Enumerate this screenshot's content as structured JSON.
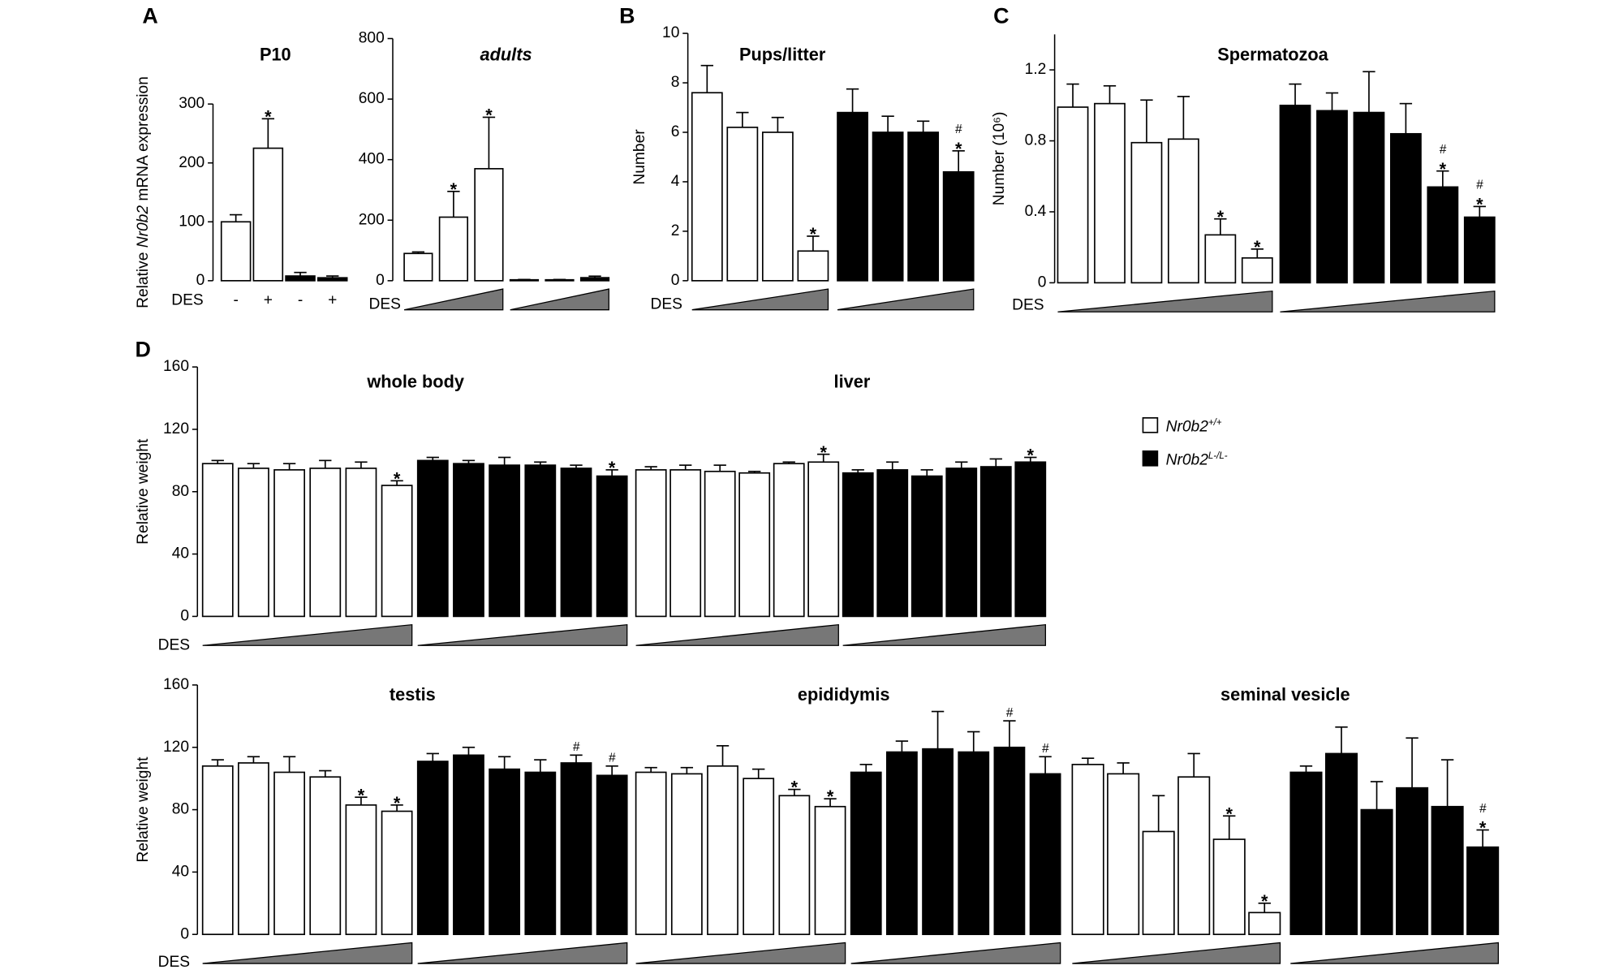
{
  "chart_data": [
    {
      "type": "bar",
      "panel": "A",
      "title": "P10",
      "ylabel": [
        "Relative ",
        "Nr0b2",
        " mRNA expression"
      ],
      "ylim": [
        0,
        300
      ],
      "yticks": [
        0,
        100,
        200,
        300
      ],
      "dose_label": "DES",
      "series": [
        {
          "color": "#ffffff",
          "categories": [
            "-",
            "+"
          ],
          "values": [
            100,
            225
          ],
          "errors": [
            12,
            50
          ],
          "annotations": [
            null,
            [
              "*"
            ]
          ]
        },
        {
          "color": "#000000",
          "categories": [
            "-",
            "+"
          ],
          "values": [
            8,
            5
          ],
          "errors": [
            6,
            3
          ],
          "annotations": [
            null,
            null
          ]
        }
      ]
    },
    {
      "type": "bar",
      "title": "adults",
      "title_style": "italic",
      "ylim": [
        0,
        800
      ],
      "yticks": [
        0,
        200,
        400,
        600,
        800
      ],
      "dose_label": "DES",
      "series": [
        {
          "color": "#ffffff",
          "values": [
            90,
            210,
            370
          ],
          "errors": [
            5,
            85,
            170
          ],
          "annotations": [
            null,
            [
              "*"
            ],
            [
              "*"
            ]
          ]
        },
        {
          "color": "#000000",
          "values": [
            3,
            3,
            10
          ],
          "errors": [
            1,
            1,
            5
          ],
          "annotations": [
            null,
            null,
            null
          ]
        }
      ]
    },
    {
      "type": "bar",
      "panel": "B",
      "title": "Pups/litter",
      "ylabel": "Number",
      "ylim": [
        0,
        10
      ],
      "yticks": [
        0,
        2,
        4,
        6,
        8,
        10
      ],
      "dose_label": "DES",
      "series": [
        {
          "color": "#ffffff",
          "values": [
            7.6,
            6.2,
            6.0,
            1.2
          ],
          "errors": [
            1.1,
            0.6,
            0.6,
            0.6
          ],
          "annotations": [
            null,
            null,
            null,
            [
              "*"
            ]
          ]
        },
        {
          "color": "#000000",
          "values": [
            6.8,
            6.0,
            6.0,
            4.4
          ],
          "errors": [
            0.95,
            0.65,
            0.45,
            0.85
          ],
          "annotations": [
            null,
            null,
            null,
            [
              "*",
              "#"
            ]
          ]
        }
      ]
    },
    {
      "type": "bar",
      "panel": "C",
      "title": "Spermatozoa",
      "ylabel": "Number (10⁶)",
      "ylim": [
        0,
        1.4
      ],
      "yticks": [
        0,
        0.4,
        0.8,
        1.2
      ],
      "dose_label": "DES",
      "series": [
        {
          "color": "#ffffff",
          "values": [
            0.99,
            1.01,
            0.79,
            0.81,
            0.27,
            0.14
          ],
          "errors": [
            0.13,
            0.1,
            0.24,
            0.24,
            0.09,
            0.05
          ],
          "annotations": [
            null,
            null,
            null,
            null,
            [
              "*"
            ],
            [
              "*"
            ]
          ]
        },
        {
          "color": "#000000",
          "values": [
            1.0,
            0.97,
            0.96,
            0.84,
            0.54,
            0.37
          ],
          "errors": [
            0.12,
            0.1,
            0.23,
            0.17,
            0.09,
            0.06
          ],
          "annotations": [
            null,
            null,
            null,
            null,
            [
              "*",
              "#"
            ],
            [
              "*",
              "#"
            ]
          ]
        }
      ]
    },
    {
      "type": "bar",
      "panel": "D",
      "title": "whole body",
      "ylabel": "Relative weight",
      "ylim": [
        0,
        160
      ],
      "yticks": [
        0,
        40,
        80,
        120,
        160
      ],
      "dose_label": "DES",
      "series": [
        {
          "color": "#ffffff",
          "values": [
            98,
            95,
            94,
            95,
            95,
            84
          ],
          "errors": [
            2,
            3,
            4,
            5,
            4,
            3
          ],
          "annotations": [
            null,
            null,
            null,
            null,
            null,
            [
              "*"
            ]
          ]
        },
        {
          "color": "#000000",
          "values": [
            100,
            98,
            97,
            97,
            95,
            90
          ],
          "errors": [
            2,
            2,
            5,
            2,
            2,
            4
          ],
          "annotations": [
            null,
            null,
            null,
            null,
            null,
            [
              "*"
            ]
          ]
        }
      ]
    },
    {
      "type": "bar",
      "title": "liver",
      "ylim": [
        0,
        160
      ],
      "series": [
        {
          "color": "#ffffff",
          "values": [
            94,
            94,
            93,
            92,
            98,
            99
          ],
          "errors": [
            2,
            3,
            4,
            1,
            1,
            5
          ],
          "annotations": [
            null,
            null,
            null,
            null,
            null,
            [
              "*"
            ]
          ]
        },
        {
          "color": "#000000",
          "values": [
            92,
            94,
            90,
            95,
            96,
            99
          ],
          "errors": [
            2,
            5,
            4,
            4,
            5,
            3
          ],
          "annotations": [
            null,
            null,
            null,
            null,
            null,
            [
              "*"
            ]
          ]
        }
      ]
    },
    {
      "type": "bar",
      "title": "testis",
      "ylabel": "Relative weight",
      "ylim": [
        0,
        160
      ],
      "yticks": [
        0,
        40,
        80,
        120,
        160
      ],
      "dose_label": "DES",
      "series": [
        {
          "color": "#ffffff",
          "values": [
            108,
            110,
            104,
            101,
            83,
            79
          ],
          "errors": [
            4,
            4,
            10,
            4,
            5,
            4
          ],
          "annotations": [
            null,
            null,
            null,
            null,
            [
              "*"
            ],
            [
              "*"
            ]
          ]
        },
        {
          "color": "#000000",
          "values": [
            111,
            115,
            106,
            104,
            110,
            102
          ],
          "errors": [
            5,
            5,
            8,
            8,
            5,
            6
          ],
          "annotations": [
            null,
            null,
            null,
            null,
            [
              "#"
            ],
            [
              "#"
            ]
          ]
        }
      ]
    },
    {
      "type": "bar",
      "title": "epididymis",
      "ylim": [
        0,
        160
      ],
      "series": [
        {
          "color": "#ffffff",
          "values": [
            104,
            103,
            108,
            100,
            89,
            82
          ],
          "errors": [
            3,
            4,
            13,
            6,
            4,
            5
          ],
          "annotations": [
            null,
            null,
            null,
            null,
            [
              "*"
            ],
            [
              "*"
            ]
          ]
        },
        {
          "color": "#000000",
          "values": [
            104,
            117,
            119,
            117,
            120,
            103
          ],
          "errors": [
            5,
            7,
            24,
            13,
            17,
            11
          ],
          "annotations": [
            null,
            null,
            null,
            null,
            [
              "#"
            ],
            [
              "#"
            ]
          ]
        }
      ]
    },
    {
      "type": "bar",
      "title": "seminal vesicle",
      "ylim": [
        0,
        160
      ],
      "series": [
        {
          "color": "#ffffff",
          "values": [
            109,
            103,
            66,
            101,
            61,
            14
          ],
          "errors": [
            4,
            7,
            23,
            15,
            15,
            6
          ],
          "annotations": [
            null,
            null,
            null,
            null,
            [
              "*"
            ],
            [
              "*"
            ]
          ]
        },
        {
          "color": "#000000",
          "values": [
            104,
            116,
            80,
            94,
            82,
            56
          ],
          "errors": [
            4,
            17,
            18,
            32,
            30,
            11
          ],
          "annotations": [
            null,
            null,
            null,
            null,
            null,
            [
              "*",
              "#"
            ]
          ]
        }
      ]
    }
  ],
  "legend": [
    {
      "text": "Nr0b2",
      "sup": "+/+",
      "color": "#ffffff"
    },
    {
      "text": "Nr0b2",
      "sup": "L-/L-",
      "color": "#000000"
    }
  ]
}
